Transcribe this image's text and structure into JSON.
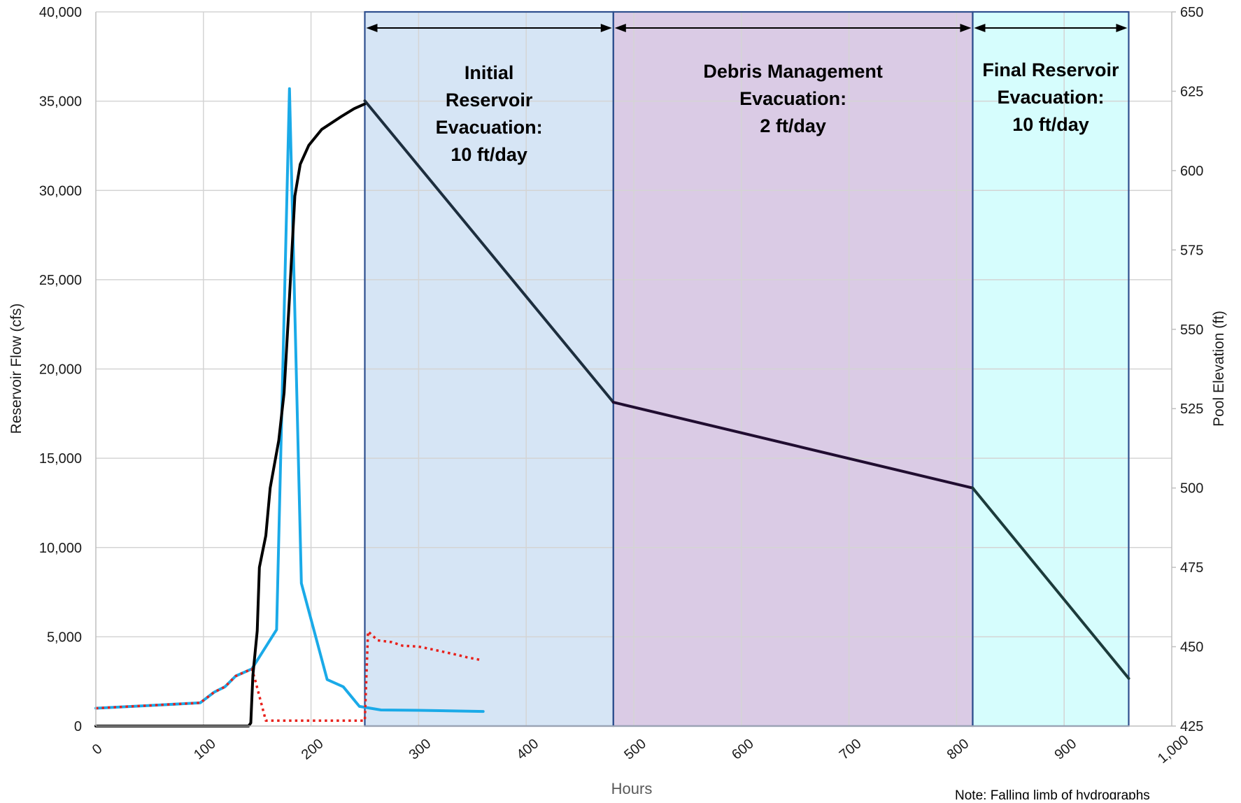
{
  "chart_data": {
    "type": "line",
    "title": "",
    "xlabel": "Hours",
    "ylabel_left": "Reservoir Flow (cfs)",
    "ylabel_right": "Pool Elevation (ft)",
    "note": "Note: Falling limb of hydrographs",
    "xlim": [
      0,
      1000
    ],
    "ylim_left": [
      0,
      40000
    ],
    "ylim_right": [
      425,
      650
    ],
    "x_ticks": [
      0,
      100,
      200,
      300,
      400,
      500,
      600,
      700,
      800,
      900,
      1000
    ],
    "x_tick_labels": [
      "0",
      "100",
      "200",
      "300",
      "400",
      "500",
      "600",
      "700",
      "800",
      "900",
      "1,000"
    ],
    "y_left_ticks": [
      0,
      5000,
      10000,
      15000,
      20000,
      25000,
      30000,
      35000,
      40000
    ],
    "y_left_tick_labels": [
      "0",
      "5,000",
      "10,000",
      "15,000",
      "20,000",
      "25,000",
      "30,000",
      "35,000",
      "40,000"
    ],
    "y_right_ticks": [
      425,
      450,
      475,
      500,
      525,
      550,
      575,
      600,
      625,
      650
    ],
    "y_right_tick_labels": [
      "425",
      "450",
      "475",
      "500",
      "525",
      "550",
      "575",
      "600",
      "625",
      "650"
    ],
    "grid": true,
    "legend": "none",
    "phases": [
      {
        "label_lines": [
          "Initial",
          "Reservoir",
          "Evacuation:",
          "10 ft/day"
        ],
        "x_start": 250,
        "x_end": 481,
        "color": "#d6e5f5"
      },
      {
        "label_lines": [
          "Debris Management",
          "Evacuation:",
          "2 ft/day"
        ],
        "x_start": 481,
        "x_end": 815,
        "color": "#dacbe5"
      },
      {
        "label_lines": [
          "Final Reservoir",
          "Evacuation:",
          "10 ft/day"
        ],
        "x_start": 815,
        "x_end": 960,
        "color": "#d6fdfd"
      }
    ],
    "series": [
      {
        "axis": "left",
        "style": "solid",
        "color": "#1aaae8",
        "points": [
          [
            0,
            1000
          ],
          [
            50,
            1150
          ],
          [
            97,
            1300
          ],
          [
            110,
            1900
          ],
          [
            120,
            2200
          ],
          [
            130,
            2800
          ],
          [
            145,
            3200
          ],
          [
            168,
            5400
          ],
          [
            180,
            35700
          ],
          [
            191,
            8000
          ],
          [
            215,
            2600
          ],
          [
            230,
            2200
          ],
          [
            245,
            1100
          ],
          [
            265,
            900
          ],
          [
            300,
            880
          ],
          [
            360,
            820
          ]
        ]
      },
      {
        "axis": "left",
        "style": "dotted",
        "color": "#e8211c",
        "points": [
          [
            0,
            1000
          ],
          [
            50,
            1150
          ],
          [
            97,
            1300
          ],
          [
            110,
            1900
          ],
          [
            120,
            2200
          ],
          [
            130,
            2800
          ],
          [
            145,
            3200
          ],
          [
            148,
            2600
          ],
          [
            158,
            300
          ],
          [
            250,
            300
          ],
          [
            253,
            5300
          ],
          [
            262,
            4800
          ],
          [
            275,
            4700
          ],
          [
            285,
            4500
          ],
          [
            300,
            4450
          ],
          [
            312,
            4300
          ],
          [
            335,
            4000
          ],
          [
            345,
            3850
          ],
          [
            358,
            3700
          ]
        ]
      },
      {
        "axis": "right",
        "style": "solid",
        "color": "#000000",
        "points": [
          [
            0,
            425
          ],
          [
            142,
            425
          ],
          [
            144,
            426
          ],
          [
            146,
            441
          ],
          [
            150,
            455
          ],
          [
            152,
            475
          ],
          [
            158,
            485
          ],
          [
            162,
            500
          ],
          [
            170,
            515
          ],
          [
            175,
            530
          ],
          [
            180,
            560
          ],
          [
            185,
            592
          ],
          [
            190,
            602
          ],
          [
            198,
            608
          ],
          [
            210,
            613
          ],
          [
            228,
            617
          ],
          [
            240,
            619.5
          ],
          [
            250,
            621
          ]
        ]
      },
      {
        "axis": "right",
        "style": "solid",
        "color": "#1d2e3e",
        "points": [
          [
            250,
            622
          ],
          [
            481,
            527
          ]
        ]
      },
      {
        "axis": "right",
        "style": "solid",
        "color": "#200d30",
        "points": [
          [
            481,
            527
          ],
          [
            815,
            500
          ]
        ]
      },
      {
        "axis": "right",
        "style": "solid",
        "color": "#1c3b3b",
        "points": [
          [
            815,
            500
          ],
          [
            960,
            440
          ]
        ]
      }
    ]
  }
}
